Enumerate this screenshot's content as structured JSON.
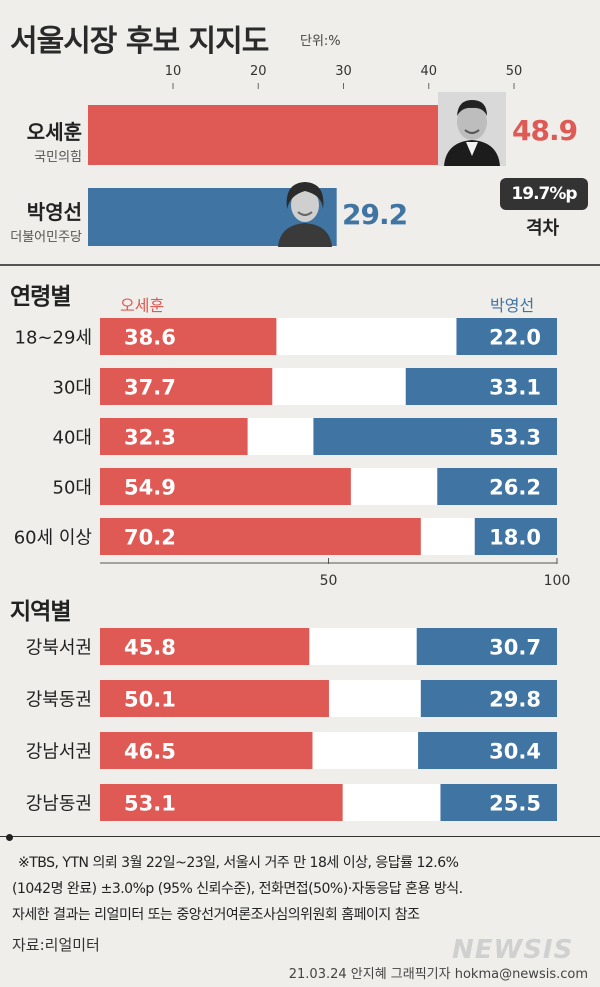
{
  "title": "서울시장 후보 지지도",
  "unit": "단위:%",
  "colors": {
    "oh": "#e05a55",
    "park": "#3f74a3",
    "neutral": "#ffffff"
  },
  "top": {
    "ticks": [
      "10",
      "20",
      "30",
      "40",
      "50"
    ],
    "candidates": [
      {
        "name": "오세훈",
        "party": "국민의힘",
        "value": 48.9,
        "value_label": "48.9",
        "photo_icon": "oh-portrait-icon"
      },
      {
        "name": "박영선",
        "party": "더불어민주당",
        "value": 29.2,
        "value_label": "29.2",
        "photo_icon": "park-portrait-icon"
      }
    ],
    "gap_value": "19.7%p",
    "gap_label": "격차"
  },
  "age": {
    "title": "연령별",
    "legend_oh": "오세훈",
    "legend_park": "박영선",
    "axis_ticks": [
      "50",
      "100"
    ]
  },
  "region": {
    "title": "지역별"
  },
  "chart_data": [
    {
      "type": "bar",
      "title": "서울시장 후보 지지도",
      "categories": [
        "오세훈",
        "박영선"
      ],
      "values": [
        48.9,
        29.2
      ],
      "xlim": [
        0,
        55
      ]
    },
    {
      "type": "bar",
      "title": "연령별",
      "stacked": true,
      "categories": [
        "18~29세",
        "30대",
        "40대",
        "50대",
        "60세 이상"
      ],
      "series": [
        {
          "name": "오세훈",
          "values": [
            38.6,
            37.7,
            32.3,
            54.9,
            70.2
          ]
        },
        {
          "name": "박영선",
          "values": [
            22.0,
            33.1,
            53.3,
            26.2,
            18.0
          ]
        }
      ],
      "value_labels": {
        "오세훈": [
          "38.6",
          "37.7",
          "32.3",
          "54.9",
          "70.2"
        ],
        "박영선": [
          "22.0",
          "33.1",
          "53.3",
          "26.2",
          "18.0"
        ]
      },
      "xlim": [
        0,
        100
      ]
    },
    {
      "type": "bar",
      "title": "지역별",
      "stacked": true,
      "categories": [
        "강북서권",
        "강북동권",
        "강남서권",
        "강남동권"
      ],
      "series": [
        {
          "name": "오세훈",
          "values": [
            45.8,
            50.1,
            46.5,
            53.1
          ]
        },
        {
          "name": "박영선",
          "values": [
            30.7,
            29.8,
            30.4,
            25.5
          ]
        }
      ],
      "value_labels": {
        "오세훈": [
          "45.8",
          "50.1",
          "46.5",
          "53.1"
        ],
        "박영선": [
          "30.7",
          "29.8",
          "30.4",
          "25.5"
        ]
      },
      "xlim": [
        0,
        100
      ]
    }
  ],
  "footnote": [
    "※TBS, YTN 의뢰 3월 22일~23일, 서울시 거주 만 18세 이상,  응답률 12.6%",
    "(1042명 완료) ±3.0%p (95% 신뢰수준), 전화면접(50%)·자동응답 혼용 방식.",
    "자세한 결과는 리얼미터 또는 중앙선거여론조사심의위원회 홈페이지 참조"
  ],
  "source": "자료:리얼미터",
  "credit": "21.03.24 안지혜 그래픽기자 hokma@newsis.com",
  "logo": "NEWSIS"
}
